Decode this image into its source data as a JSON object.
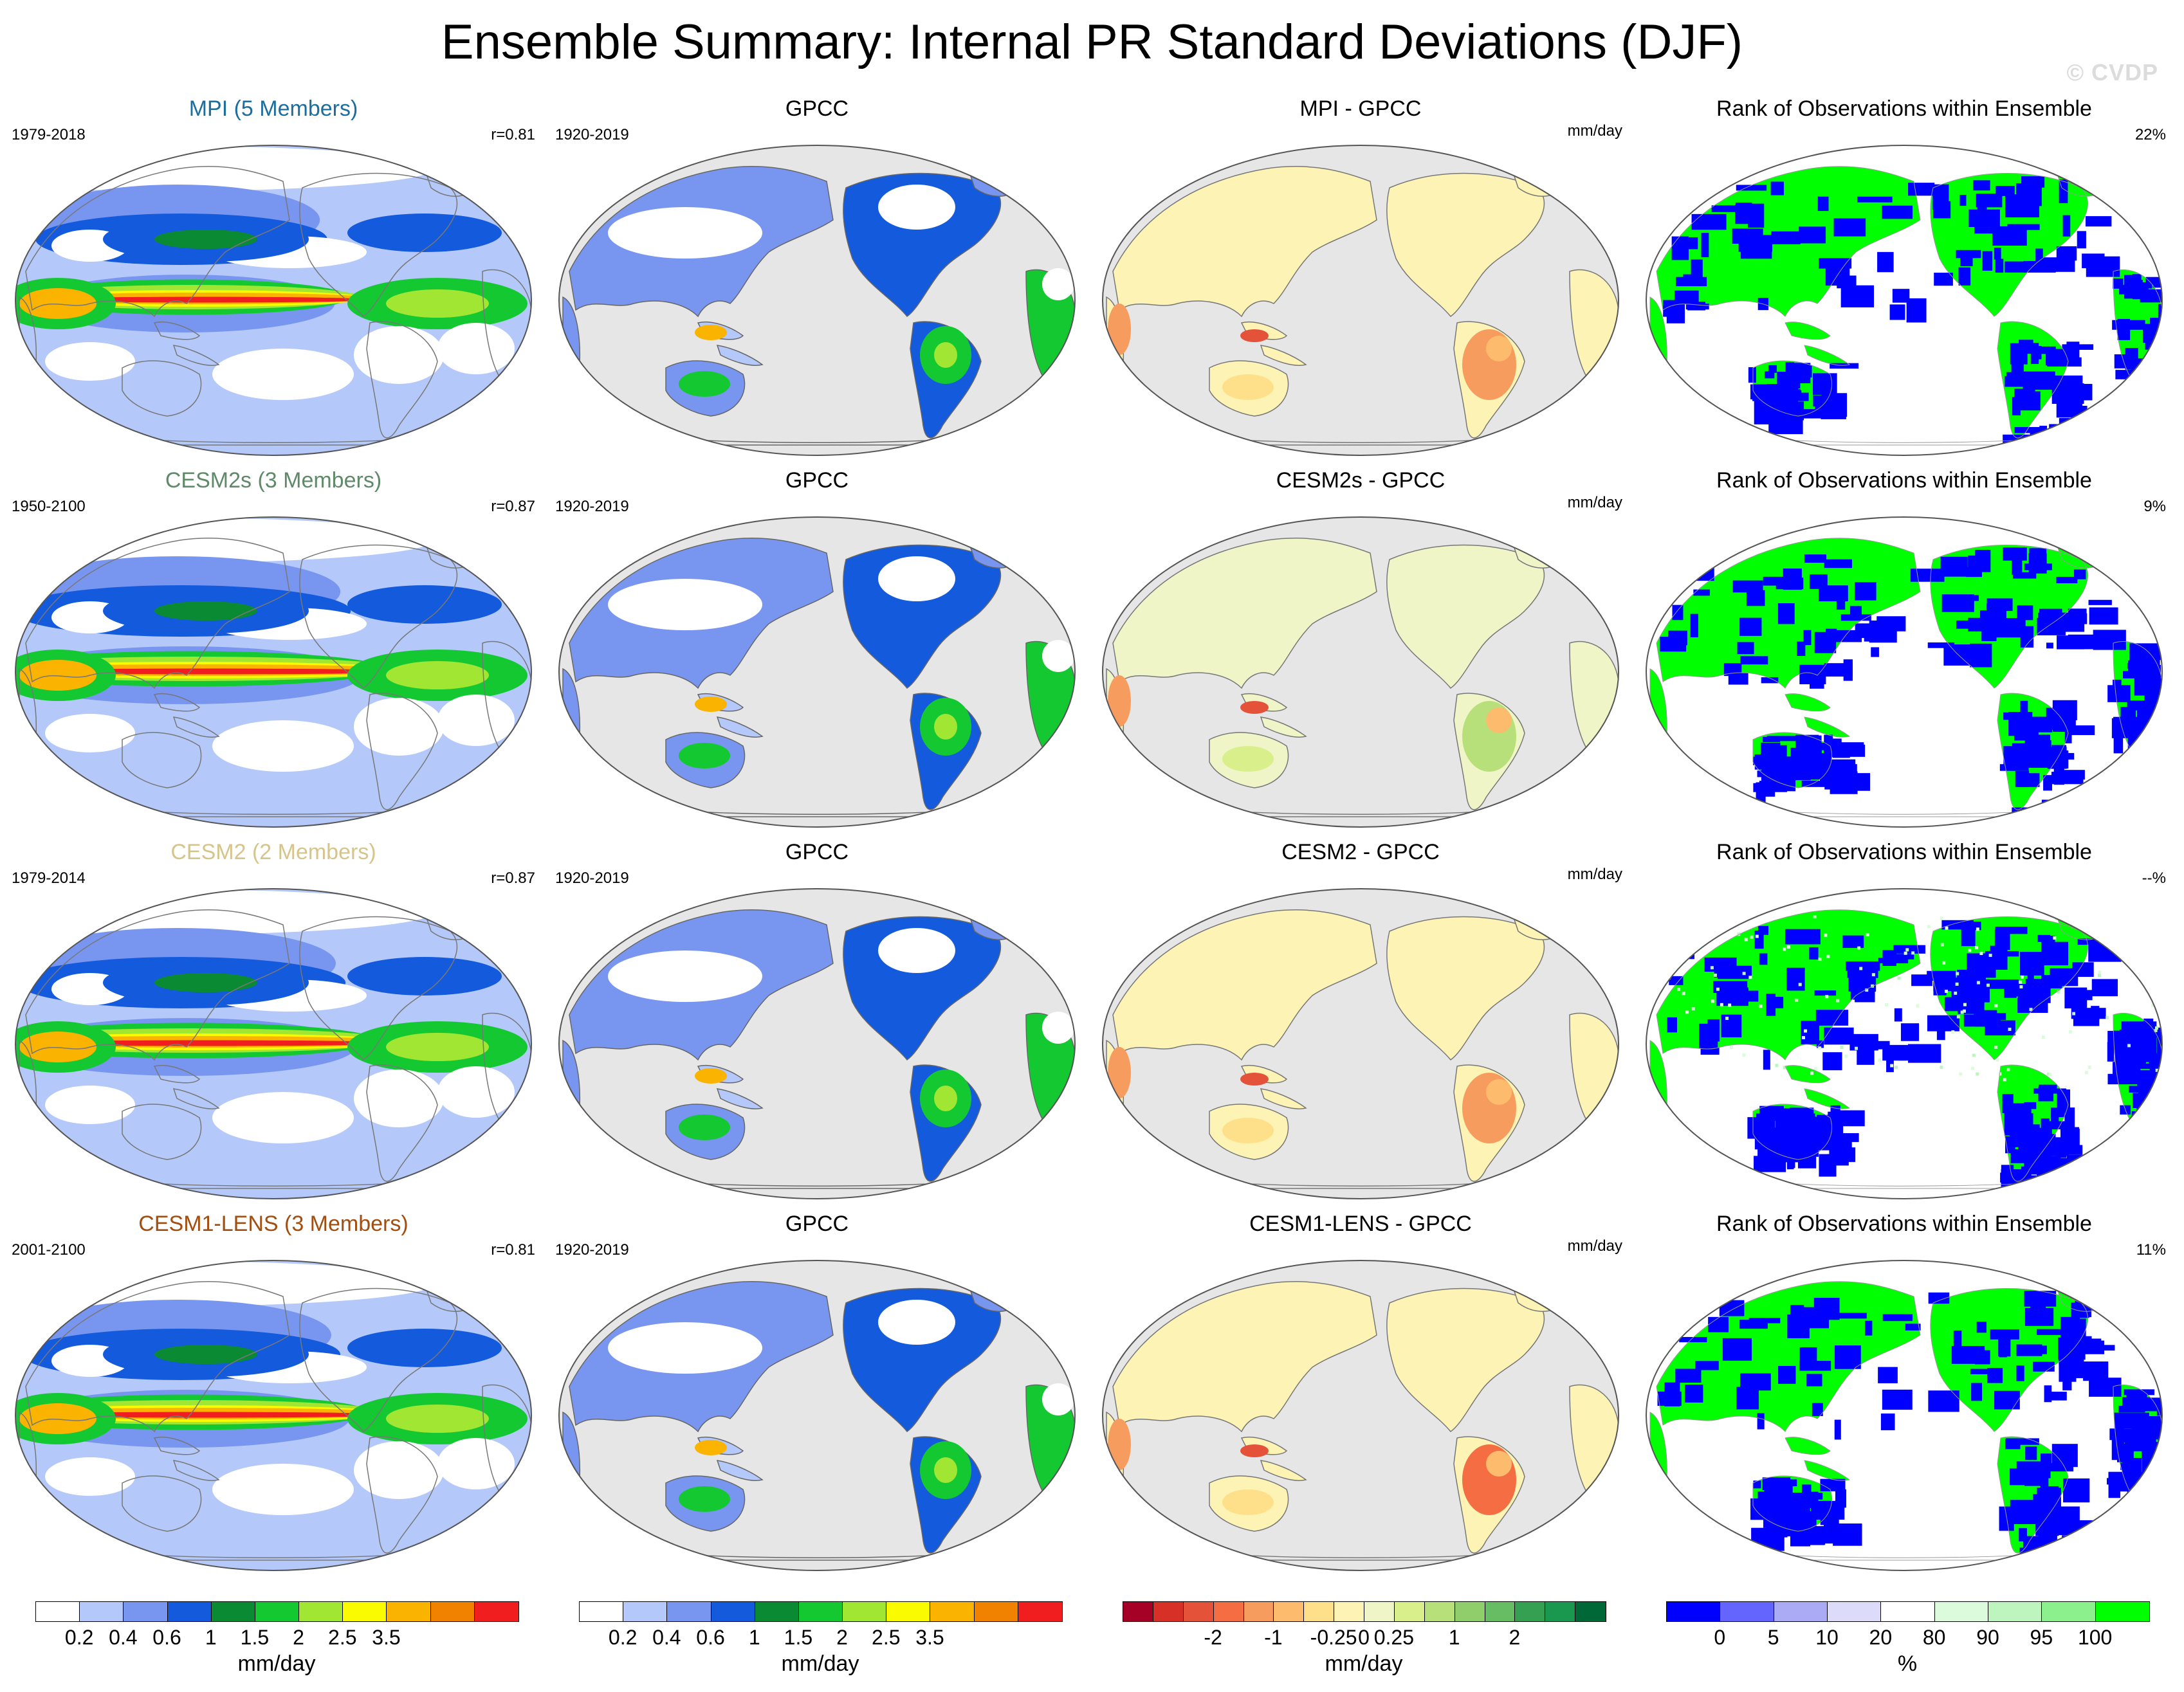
{
  "title": "Ensemble Summary: Internal PR Standard Deviations (DJF)",
  "watermark": "© CVDP",
  "chart_data": {
    "type": "map",
    "rows": [
      {
        "model": {
          "title": "MPI (5 Members)",
          "color": "#1d6e9e",
          "years": "1979-2018",
          "r": "r=0.81"
        },
        "obs": {
          "title": "GPCC",
          "years": "1920-2019"
        },
        "diff": {
          "title": "MPI - GPCC",
          "units": "mm/day"
        },
        "rank": {
          "title": "Rank of Observations within Ensemble",
          "pct": "22%"
        }
      },
      {
        "model": {
          "title": "CESM2s (3 Members)",
          "color": "#5f8a6a",
          "years": "1950-2100",
          "r": "r=0.87"
        },
        "obs": {
          "title": "GPCC",
          "years": "1920-2019"
        },
        "diff": {
          "title": "CESM2s - GPCC",
          "units": "mm/day"
        },
        "rank": {
          "title": "Rank of Observations within Ensemble",
          "pct": "9%"
        }
      },
      {
        "model": {
          "title": "CESM2 (2 Members)",
          "color": "#d6c58b",
          "years": "1979-2014",
          "r": "r=0.87"
        },
        "obs": {
          "title": "GPCC",
          "years": "1920-2019"
        },
        "diff": {
          "title": "CESM2 - GPCC",
          "units": "mm/day"
        },
        "rank": {
          "title": "Rank of Observations within Ensemble",
          "pct": "--%"
        }
      },
      {
        "model": {
          "title": "CESM1-LENS (3 Members)",
          "color": "#a24e10",
          "years": "2001-2100",
          "r": "r=0.81"
        },
        "obs": {
          "title": "GPCC",
          "years": "1920-2019"
        },
        "diff": {
          "title": "CESM1-LENS - GPCC",
          "units": "mm/day"
        },
        "rank": {
          "title": "Rank of Observations within Ensemble",
          "pct": "11%"
        }
      }
    ],
    "colorbars": [
      {
        "name": "stddev-model",
        "units": "mm/day",
        "colors": [
          "#ffffff",
          "#b4c8fa",
          "#7896f0",
          "#145adc",
          "#0a8a32",
          "#14c832",
          "#a0e632",
          "#fafa00",
          "#fab400",
          "#f08200",
          "#f01e1e"
        ],
        "ticks": [
          "0.2",
          "0.4",
          "0.6",
          "1",
          "1.5",
          "2",
          "2.5",
          "3.5"
        ],
        "tick_after_box": [
          0,
          1,
          2,
          3,
          4,
          5,
          6,
          7
        ],
        "note": "ticks sit at box boundaries; 11 boxes"
      },
      {
        "name": "stddev-obs",
        "units": "mm/day",
        "colors": [
          "#ffffff",
          "#b4c8fa",
          "#7896f0",
          "#145adc",
          "#0a8a32",
          "#14c832",
          "#a0e632",
          "#fafa00",
          "#fab400",
          "#f08200",
          "#f01e1e"
        ],
        "ticks": [
          "0.2",
          "0.4",
          "0.6",
          "1",
          "1.5",
          "2",
          "2.5",
          "3.5"
        ],
        "tick_after_box": [
          0,
          1,
          2,
          3,
          4,
          5,
          6,
          7
        ]
      },
      {
        "name": "difference",
        "units": "mm/day",
        "colors": [
          "#a50026",
          "#d73027",
          "#e4523a",
          "#f46d43",
          "#f79c5f",
          "#fdbb6e",
          "#fee08b",
          "#fdf3b4",
          "#f0f5c8",
          "#d9ef8b",
          "#b7e07a",
          "#8fce6a",
          "#66bd63",
          "#35a052",
          "#1a9850",
          "#006837"
        ],
        "ticks": [
          "-2",
          "-1",
          "-0.25",
          "0",
          "0.25",
          "1",
          "2"
        ],
        "tick_after_box": [
          2,
          4,
          6,
          7,
          8,
          10,
          12
        ]
      },
      {
        "name": "rank",
        "units": "%",
        "colors": [
          "#0000ff",
          "#6464ff",
          "#aaaaf5",
          "#dcdcfa",
          "#ffffff",
          "#dcfadc",
          "#bef5be",
          "#8cf08c",
          "#00ff00"
        ],
        "ticks": [
          "0",
          "5",
          "10",
          "20",
          "80",
          "90",
          "95",
          "100"
        ],
        "tick_after_box": [
          0,
          1,
          2,
          3,
          4,
          5,
          6,
          7
        ]
      }
    ]
  }
}
